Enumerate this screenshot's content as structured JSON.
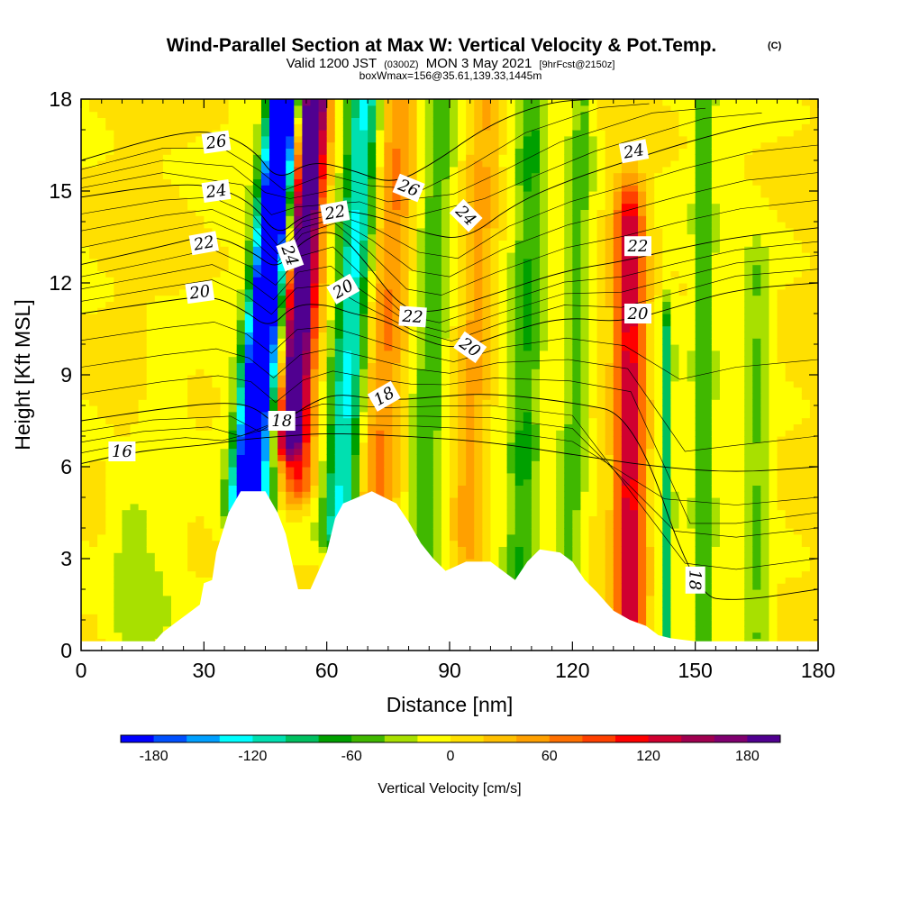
{
  "header": {
    "title_main": "Wind-Parallel Section at Max W: Vertical Velocity & Pot.Temp.",
    "title_sup": "(C)",
    "valid_prefix": "Valid 1200 JST",
    "valid_utc": "(0300Z)",
    "valid_date": "MON 3 May 2021",
    "forecast": "[9hrFcst@2150z]",
    "box_info": "boxWmax=156@35.61,139.33,1445m"
  },
  "chart_data": {
    "type": "heatmap",
    "xlabel": "Distance [nm]",
    "ylabel": "Height [Kft MSL]",
    "xlim": [
      0,
      180
    ],
    "ylim": [
      0,
      18
    ],
    "x_ticks": [
      0,
      30,
      60,
      90,
      120,
      150,
      180
    ],
    "y_ticks": [
      0,
      3,
      6,
      9,
      12,
      15,
      18
    ],
    "colorbar": {
      "label": "Vertical Velocity [cm/s]",
      "min": -200,
      "max": 200,
      "step": 20,
      "tick_values": [
        -180,
        -120,
        -60,
        0,
        60,
        120,
        180
      ],
      "colors": [
        "#0000ff",
        "#0050ff",
        "#00a0ff",
        "#00ffff",
        "#00e0b0",
        "#00c060",
        "#00a000",
        "#40b800",
        "#a8e000",
        "#ffff00",
        "#ffe000",
        "#ffc000",
        "#ffa000",
        "#ff7000",
        "#ff4000",
        "#ff0000",
        "#d00030",
        "#a00050",
        "#800070",
        "#500090"
      ]
    },
    "velocity_features": [
      {
        "x": 40,
        "width": 7,
        "tilt": 0.75,
        "y_from": 5.0,
        "y_to": 18,
        "w": -190
      },
      {
        "x": 44,
        "width": 7,
        "tilt": 0.55,
        "y_from": 4.5,
        "y_to": 18,
        "w": -120
      },
      {
        "x": 50,
        "width": 6,
        "tilt": 0.55,
        "y_from": 7.0,
        "y_to": 18,
        "w": 170
      },
      {
        "x": 53,
        "width": 8,
        "tilt": 0.35,
        "y_from": 5.5,
        "y_to": 18,
        "w": 100
      },
      {
        "x": 64,
        "width": 9,
        "tilt": 0.45,
        "y_from": 4.0,
        "y_to": 18,
        "w": -130
      },
      {
        "x": 72,
        "width": 10,
        "tilt": 0.45,
        "y_from": 5.0,
        "y_to": 18,
        "w": 60
      },
      {
        "x": 84,
        "width": 8,
        "tilt": 0.3,
        "y_from": 3.0,
        "y_to": 18,
        "w": -55
      },
      {
        "x": 95,
        "width": 8,
        "tilt": 0.3,
        "y_from": 3.0,
        "y_to": 18,
        "w": 50
      },
      {
        "x": 108,
        "width": 8,
        "tilt": 0.2,
        "y_from": 2.5,
        "y_to": 18,
        "w": -60
      },
      {
        "x": 120,
        "width": 7,
        "tilt": 0.2,
        "y_from": 2.5,
        "y_to": 18,
        "w": -50
      },
      {
        "x": 134,
        "width": 7,
        "tilt": 0.0,
        "y_from": 1.0,
        "y_to": 14,
        "w": 130
      },
      {
        "x": 143,
        "width": 3,
        "tilt": 0.0,
        "y_from": 0.5,
        "y_to": 10,
        "w": -90
      },
      {
        "x": 152,
        "width": 5,
        "tilt": 0.0,
        "y_from": 0.5,
        "y_to": 18,
        "w": -55
      },
      {
        "x": 165,
        "width": 6,
        "tilt": 0.0,
        "y_from": 0.5,
        "y_to": 12,
        "w": -40
      },
      {
        "x": 12,
        "width": 10,
        "tilt": 0.0,
        "y_from": 0.5,
        "y_to": 4.0,
        "w": -35
      },
      {
        "x": 20,
        "width": 10,
        "tilt": 0.0,
        "y_from": 0.5,
        "y_to": 9.0,
        "w": -20
      }
    ],
    "terrain": [
      [
        0,
        0.3
      ],
      [
        18,
        0.3
      ],
      [
        20,
        0.6
      ],
      [
        23,
        0.9
      ],
      [
        26,
        1.2
      ],
      [
        29,
        1.5
      ],
      [
        30,
        2.2
      ],
      [
        32,
        2.3
      ],
      [
        33,
        3.2
      ],
      [
        36,
        4.5
      ],
      [
        39,
        5.2
      ],
      [
        45,
        5.2
      ],
      [
        48,
        4.5
      ],
      [
        50,
        3.8
      ],
      [
        52,
        2.6
      ],
      [
        53,
        2.0
      ],
      [
        56,
        2.0
      ],
      [
        58,
        2.6
      ],
      [
        60,
        3.2
      ],
      [
        62,
        4.3
      ],
      [
        64,
        4.8
      ],
      [
        71,
        5.2
      ],
      [
        77,
        4.8
      ],
      [
        80,
        4.2
      ],
      [
        83,
        3.5
      ],
      [
        86,
        3.0
      ],
      [
        89,
        2.6
      ],
      [
        94,
        2.9
      ],
      [
        100,
        2.9
      ],
      [
        104,
        2.5
      ],
      [
        106,
        2.3
      ],
      [
        109,
        2.9
      ],
      [
        112,
        3.3
      ],
      [
        117,
        3.2
      ],
      [
        120,
        2.9
      ],
      [
        123,
        2.3
      ],
      [
        126,
        1.9
      ],
      [
        128,
        1.6
      ],
      [
        130,
        1.3
      ],
      [
        134,
        1.0
      ],
      [
        138,
        0.8
      ],
      [
        141,
        0.5
      ],
      [
        144,
        0.4
      ],
      [
        150,
        0.3
      ],
      [
        180,
        0.3
      ]
    ],
    "theta_contours": [
      {
        "level": 16,
        "pts": [
          [
            0,
            6.1
          ],
          [
            10,
            6.4
          ],
          [
            20,
            6.6
          ],
          [
            30,
            6.7
          ],
          [
            40,
            6.9
          ],
          [
            50,
            7.0
          ],
          [
            60,
            7.1
          ],
          [
            80,
            7.0
          ],
          [
            100,
            6.8
          ],
          [
            120,
            6.4
          ],
          [
            140,
            6.0
          ],
          [
            160,
            5.8
          ],
          [
            180,
            6.0
          ]
        ]
      },
      {
        "level": 18,
        "pts": [
          [
            0,
            7.5
          ],
          [
            20,
            7.9
          ],
          [
            34,
            8.1
          ],
          [
            42,
            8.0
          ],
          [
            48,
            7.3
          ],
          [
            55,
            8.0
          ],
          [
            62,
            8.4
          ],
          [
            72,
            8.2
          ],
          [
            80,
            8.2
          ],
          [
            88,
            8.3
          ],
          [
            100,
            8.4
          ],
          [
            120,
            8.1
          ],
          [
            135,
            7.7
          ],
          [
            150,
            1.8
          ],
          [
            160,
            1.6
          ],
          [
            180,
            2.0
          ]
        ]
      },
      {
        "level": 20,
        "pts": [
          [
            0,
            11.0
          ],
          [
            20,
            11.4
          ],
          [
            32,
            11.6
          ],
          [
            40,
            11.1
          ],
          [
            46,
            10.5
          ],
          [
            52,
            11.3
          ],
          [
            60,
            11.3
          ],
          [
            66,
            11.0
          ],
          [
            74,
            10.8
          ],
          [
            82,
            10.2
          ],
          [
            92,
            9.8
          ],
          [
            104,
            10.4
          ],
          [
            118,
            10.9
          ],
          [
            132,
            10.7
          ],
          [
            145,
            11.2
          ],
          [
            160,
            11.8
          ],
          [
            180,
            12.0
          ]
        ]
      },
      {
        "level": 22,
        "pts": [
          [
            0,
            12.6
          ],
          [
            20,
            13.2
          ],
          [
            32,
            13.6
          ],
          [
            42,
            13.0
          ],
          [
            48,
            12.4
          ],
          [
            54,
            13.4
          ],
          [
            62,
            13.8
          ],
          [
            70,
            12.6
          ],
          [
            78,
            11.2
          ],
          [
            86,
            11.0
          ],
          [
            100,
            11.6
          ],
          [
            118,
            12.4
          ],
          [
            132,
            12.7
          ],
          [
            145,
            13.1
          ],
          [
            160,
            13.5
          ],
          [
            180,
            13.8
          ]
        ]
      },
      {
        "level": 24,
        "pts": [
          [
            0,
            14.8
          ],
          [
            20,
            15.2
          ],
          [
            32,
            15.2
          ],
          [
            42,
            14.6
          ],
          [
            48,
            13.5
          ],
          [
            54,
            14.2
          ],
          [
            62,
            14.4
          ],
          [
            72,
            14.2
          ],
          [
            84,
            13.6
          ],
          [
            94,
            13.4
          ],
          [
            106,
            14.6
          ],
          [
            120,
            15.4
          ],
          [
            134,
            16.0
          ],
          [
            148,
            16.6
          ],
          [
            165,
            17.2
          ],
          [
            180,
            17.4
          ]
        ]
      },
      {
        "level": 26,
        "pts": [
          [
            0,
            16.0
          ],
          [
            20,
            16.8
          ],
          [
            32,
            17.0
          ],
          [
            42,
            16.4
          ],
          [
            48,
            15.3
          ],
          [
            56,
            16.0
          ],
          [
            66,
            15.7
          ],
          [
            76,
            15.2
          ],
          [
            86,
            15.9
          ],
          [
            100,
            17.2
          ],
          [
            114,
            17.9
          ],
          [
            125,
            18.0
          ]
        ]
      }
    ],
    "contour_labels": [
      {
        "text": "26",
        "x": 33,
        "y": 16.6,
        "angle": 8
      },
      {
        "text": "24",
        "x": 33,
        "y": 15.0,
        "angle": 8
      },
      {
        "text": "22",
        "x": 30,
        "y": 13.3,
        "angle": 10
      },
      {
        "text": "20",
        "x": 29,
        "y": 11.7,
        "angle": 8
      },
      {
        "text": "24",
        "x": 51,
        "y": 12.9,
        "angle": -70
      },
      {
        "text": "22",
        "x": 62,
        "y": 14.3,
        "angle": 10
      },
      {
        "text": "26",
        "x": 80,
        "y": 15.1,
        "angle": -22
      },
      {
        "text": "24",
        "x": 94,
        "y": 14.2,
        "angle": -45
      },
      {
        "text": "20",
        "x": 64,
        "y": 11.8,
        "angle": 30
      },
      {
        "text": "22",
        "x": 81,
        "y": 10.9,
        "angle": -4
      },
      {
        "text": "20",
        "x": 95,
        "y": 9.9,
        "angle": -35
      },
      {
        "text": "18",
        "x": 74,
        "y": 8.3,
        "angle": 30
      },
      {
        "text": "18",
        "x": 49,
        "y": 7.5,
        "angle": 0
      },
      {
        "text": "16",
        "x": 10,
        "y": 6.5,
        "angle": 0
      },
      {
        "text": "24",
        "x": 135,
        "y": 16.3,
        "angle": 10
      },
      {
        "text": "22",
        "x": 136,
        "y": 13.2,
        "angle": 0
      },
      {
        "text": "20",
        "x": 136,
        "y": 11.0,
        "angle": 0
      },
      {
        "text": "18",
        "x": 150,
        "y": 2.3,
        "angle": -90
      }
    ]
  }
}
